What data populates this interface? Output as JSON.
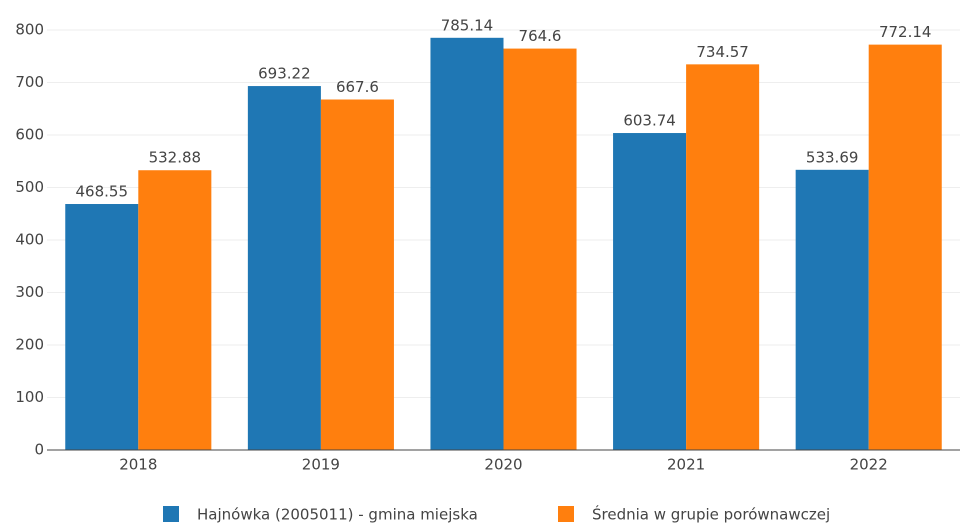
{
  "chart_data": {
    "type": "bar",
    "categories": [
      "2018",
      "2019",
      "2020",
      "2021",
      "2022"
    ],
    "series": [
      {
        "name": "Hajnówka (2005011) - gmina miejska",
        "color": "#1f77b4",
        "values": [
          468.55,
          693.22,
          785.14,
          603.74,
          533.69
        ]
      },
      {
        "name": "Średnia w grupie porównawczej",
        "color": "#ff7f0e",
        "values": [
          532.88,
          667.6,
          764.6,
          734.57,
          772.14
        ]
      }
    ],
    "ylim": [
      0,
      850
    ],
    "yticks": [
      0,
      100,
      200,
      300,
      400,
      500,
      600,
      700,
      800
    ],
    "grid": true
  }
}
